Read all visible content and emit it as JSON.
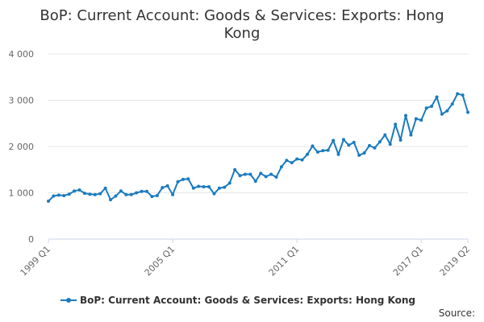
{
  "chart_data": {
    "type": "line",
    "title_line1": "BoP: Current Account: Goods & Services: Exports: Hong",
    "title_line2": "Kong",
    "x_tick_labels": [
      "1999 Q1",
      "2005 Q1",
      "2011 Q1",
      "2017 Q1",
      "2019 Q2"
    ],
    "y_tick_labels": [
      "0",
      "1 000",
      "2 000",
      "3 000",
      "4 000"
    ],
    "ylim": [
      0,
      4000
    ],
    "grid": true,
    "legend_position": "bottom",
    "series": [
      {
        "name": "BoP: Current Account: Goods & Services: Exports: Hong Kong",
        "color": "#1b7bbf",
        "start_period": "1999 Q1",
        "values": [
          820,
          930,
          950,
          940,
          970,
          1040,
          1060,
          990,
          970,
          960,
          980,
          1100,
          850,
          930,
          1040,
          960,
          960,
          1000,
          1030,
          1030,
          920,
          940,
          1110,
          1150,
          960,
          1240,
          1290,
          1300,
          1100,
          1140,
          1130,
          1130,
          980,
          1100,
          1120,
          1210,
          1500,
          1370,
          1400,
          1400,
          1250,
          1420,
          1350,
          1400,
          1340,
          1560,
          1700,
          1650,
          1730,
          1710,
          1830,
          2010,
          1880,
          1910,
          1920,
          2130,
          1830,
          2150,
          2030,
          2090,
          1810,
          1860,
          2020,
          1970,
          2100,
          2250,
          2050,
          2480,
          2140,
          2670,
          2250,
          2600,
          2570,
          2830,
          2870,
          3070,
          2700,
          2770,
          2920,
          3140,
          3110,
          2740
        ]
      }
    ]
  },
  "legend_label": "BoP: Current Account: Goods & Services: Exports: Hong Kong",
  "source_label": "Source:"
}
